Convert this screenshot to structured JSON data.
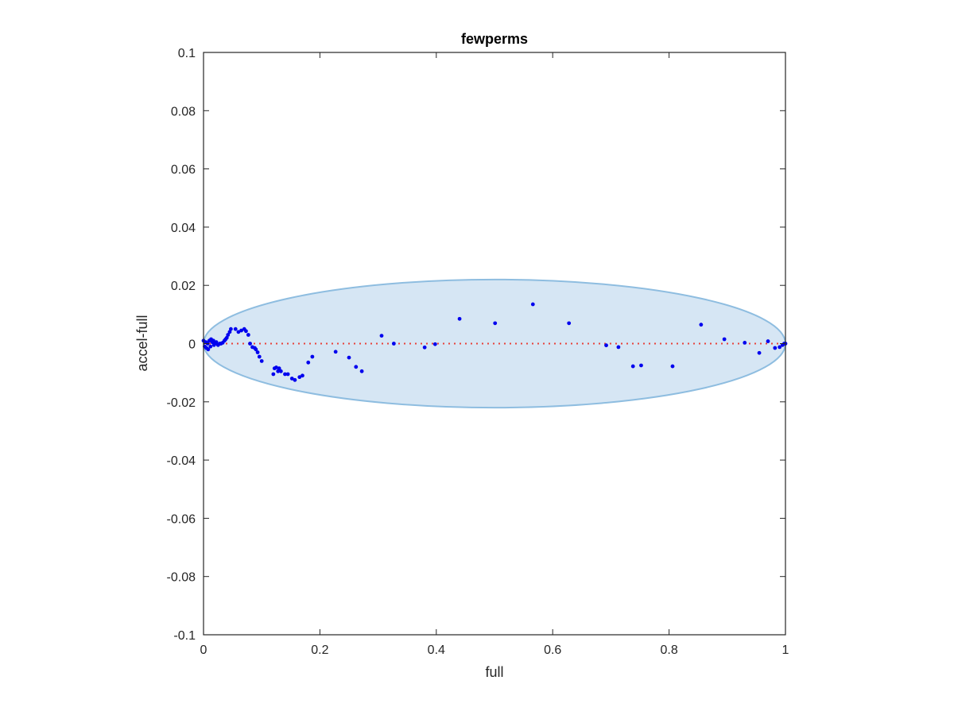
{
  "chart_data": {
    "type": "scatter",
    "title": "fewperms",
    "xlabel": "full",
    "ylabel": "accel-full",
    "xlim": [
      0,
      1
    ],
    "ylim": [
      -0.1,
      0.1
    ],
    "xticks": [
      0,
      0.2,
      0.4,
      0.6,
      0.8,
      1
    ],
    "xtick_labels": [
      "0",
      "0.2",
      "0.4",
      "0.6",
      "0.8",
      "1"
    ],
    "yticks": [
      -0.1,
      -0.08,
      -0.06,
      -0.04,
      -0.02,
      0,
      0.02,
      0.04,
      0.06,
      0.08,
      0.1
    ],
    "ytick_labels": [
      "-0.1",
      "-0.08",
      "-0.06",
      "-0.04",
      "-0.02",
      "0",
      "0.02",
      "0.04",
      "0.06",
      "0.08",
      "0.1"
    ],
    "grid": false,
    "reference_line": {
      "y": 0,
      "style": "dotted",
      "color": "#e8413a"
    },
    "ellipse": {
      "center_x": 0.5,
      "center_y": 0,
      "half_width": 0.5,
      "half_height": 0.022,
      "fill": "#d6e6f4",
      "stroke": "#8ebde0"
    },
    "series": [
      {
        "color": "#0000ee",
        "points": [
          [
            0.0,
            0.001
          ],
          [
            0.002,
            -0.001
          ],
          [
            0.004,
            0.0005
          ],
          [
            0.005,
            -0.0015
          ],
          [
            0.007,
            0.0
          ],
          [
            0.008,
            -0.002
          ],
          [
            0.01,
            0.001
          ],
          [
            0.012,
            -0.001
          ],
          [
            0.013,
            0.0015
          ],
          [
            0.015,
            0.0005
          ],
          [
            0.017,
            0.001
          ],
          [
            0.018,
            -0.0005
          ],
          [
            0.02,
            0.0
          ],
          [
            0.022,
            0.0005
          ],
          [
            0.025,
            -0.0005
          ],
          [
            0.028,
            0.0
          ],
          [
            0.03,
            0.0
          ],
          [
            0.033,
            0.0003
          ],
          [
            0.036,
            0.001
          ],
          [
            0.038,
            0.0015
          ],
          [
            0.04,
            0.002
          ],
          [
            0.042,
            0.003
          ],
          [
            0.045,
            0.004
          ],
          [
            0.047,
            0.005
          ],
          [
            0.055,
            0.005
          ],
          [
            0.06,
            0.004
          ],
          [
            0.065,
            0.0045
          ],
          [
            0.07,
            0.005
          ],
          [
            0.073,
            0.0043
          ],
          [
            0.077,
            0.003
          ],
          [
            0.08,
            0.0
          ],
          [
            0.084,
            -0.0012
          ],
          [
            0.088,
            -0.0015
          ],
          [
            0.09,
            -0.002
          ],
          [
            0.093,
            -0.003
          ],
          [
            0.096,
            -0.0045
          ],
          [
            0.1,
            -0.006
          ],
          [
            0.12,
            -0.0105
          ],
          [
            0.122,
            -0.0085
          ],
          [
            0.125,
            -0.0082
          ],
          [
            0.128,
            -0.0095
          ],
          [
            0.13,
            -0.0085
          ],
          [
            0.133,
            -0.0095
          ],
          [
            0.14,
            -0.0105
          ],
          [
            0.145,
            -0.0105
          ],
          [
            0.152,
            -0.012
          ],
          [
            0.157,
            -0.0125
          ],
          [
            0.165,
            -0.0115
          ],
          [
            0.17,
            -0.011
          ],
          [
            0.18,
            -0.0065
          ],
          [
            0.187,
            -0.0045
          ],
          [
            0.227,
            -0.0028
          ],
          [
            0.25,
            -0.0048
          ],
          [
            0.262,
            -0.008
          ],
          [
            0.272,
            -0.0095
          ],
          [
            0.306,
            0.0027
          ],
          [
            0.327,
            0.0
          ],
          [
            0.38,
            -0.0013
          ],
          [
            0.398,
            -0.0002
          ],
          [
            0.44,
            0.0085
          ],
          [
            0.501,
            0.007
          ],
          [
            0.566,
            0.0135
          ],
          [
            0.628,
            0.007
          ],
          [
            0.692,
            -0.0006
          ],
          [
            0.713,
            -0.0012
          ],
          [
            0.738,
            -0.0078
          ],
          [
            0.752,
            -0.0075
          ],
          [
            0.806,
            -0.0078
          ],
          [
            0.855,
            0.0065
          ],
          [
            0.895,
            0.0015
          ],
          [
            0.93,
            0.0003
          ],
          [
            0.955,
            -0.0032
          ],
          [
            0.97,
            0.0008
          ],
          [
            0.982,
            -0.0015
          ],
          [
            0.99,
            -0.0012
          ],
          [
            0.995,
            -0.0005
          ],
          [
            0.998,
            0.0
          ],
          [
            1.0,
            0.0
          ]
        ]
      }
    ]
  }
}
